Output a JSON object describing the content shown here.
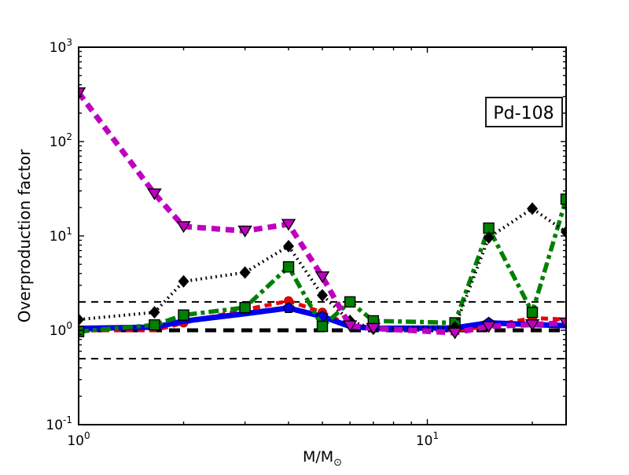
{
  "figure": {
    "label_box": "Pd-108",
    "background": "#ffffff"
  },
  "axes": {
    "x": {
      "label_main": "M/M",
      "label_sub": "⊙",
      "scale": "log",
      "range": [
        1,
        25
      ],
      "major_ticks": [
        1,
        10
      ],
      "major_tick_labels": [
        "10^0",
        "10^1"
      ],
      "major_exponents": [
        0,
        1
      ],
      "minor_ticks": [
        2,
        3,
        4,
        5,
        6,
        7,
        8,
        9,
        20
      ]
    },
    "y": {
      "label": "Overproduction factor",
      "scale": "log",
      "range": [
        0.1,
        1000
      ],
      "major_ticks": [
        1000,
        100,
        10,
        1,
        0.1
      ],
      "major_tick_labels": [
        "10^3",
        "10^2",
        "10^1",
        "10^0",
        "10^-1"
      ],
      "major_exponents": [
        3,
        2,
        1,
        0,
        -1
      ]
    }
  },
  "chart_data": {
    "type": "line",
    "xscale": "log",
    "yscale": "log",
    "xlim": [
      1,
      25
    ],
    "ylim": [
      0.1,
      1000
    ],
    "x": [
      1,
      1.65,
      2,
      3,
      4,
      5,
      6,
      7,
      12,
      15,
      20,
      25
    ],
    "series": [
      {
        "name": "red-dashed",
        "color": "#ee0000",
        "linestyle": "dashed",
        "marker": "circle",
        "marker_at": [
          2,
          4,
          5,
          20
        ],
        "values": [
          1.0,
          1.0,
          1.2,
          1.65,
          2.05,
          1.55,
          1.12,
          1.03,
          1.0,
          1.1,
          1.35,
          1.3
        ]
      },
      {
        "name": "blue-solid",
        "color": "#0000ee",
        "linestyle": "solid",
        "marker": "pentagon",
        "marker_at": [
          4,
          5,
          15
        ],
        "values": [
          1.05,
          1.08,
          1.25,
          1.5,
          1.72,
          1.4,
          1.1,
          1.05,
          1.06,
          1.2,
          1.15,
          1.12
        ]
      },
      {
        "name": "green-dashdot",
        "color": "#008000",
        "linestyle": "dashdot",
        "marker": "square",
        "values": [
          0.97,
          1.14,
          1.45,
          1.74,
          4.7,
          1.1,
          2.0,
          1.26,
          1.2,
          12.1,
          1.55,
          24.5
        ]
      },
      {
        "name": "black-dotted",
        "color": "#000000",
        "linestyle": "dotted",
        "marker": "diamond",
        "values": [
          1.3,
          1.55,
          3.3,
          4.1,
          7.8,
          2.35,
          1.26,
          1.04,
          1.08,
          9.6,
          19.5,
          11.0
        ]
      },
      {
        "name": "magenta-dashed",
        "color": "#bf00bf",
        "linestyle": "dashed",
        "marker": "triangle-down",
        "values": [
          330,
          28,
          12.6,
          11.3,
          13.3,
          3.7,
          1.12,
          1.05,
          0.94,
          1.1,
          1.15,
          1.2
        ]
      }
    ],
    "reference_lines": [
      {
        "y": 2,
        "style": "thin-dashed"
      },
      {
        "y": 1,
        "style": "thick-dashed"
      },
      {
        "y": 0.5,
        "style": "thin-dashed"
      }
    ]
  }
}
